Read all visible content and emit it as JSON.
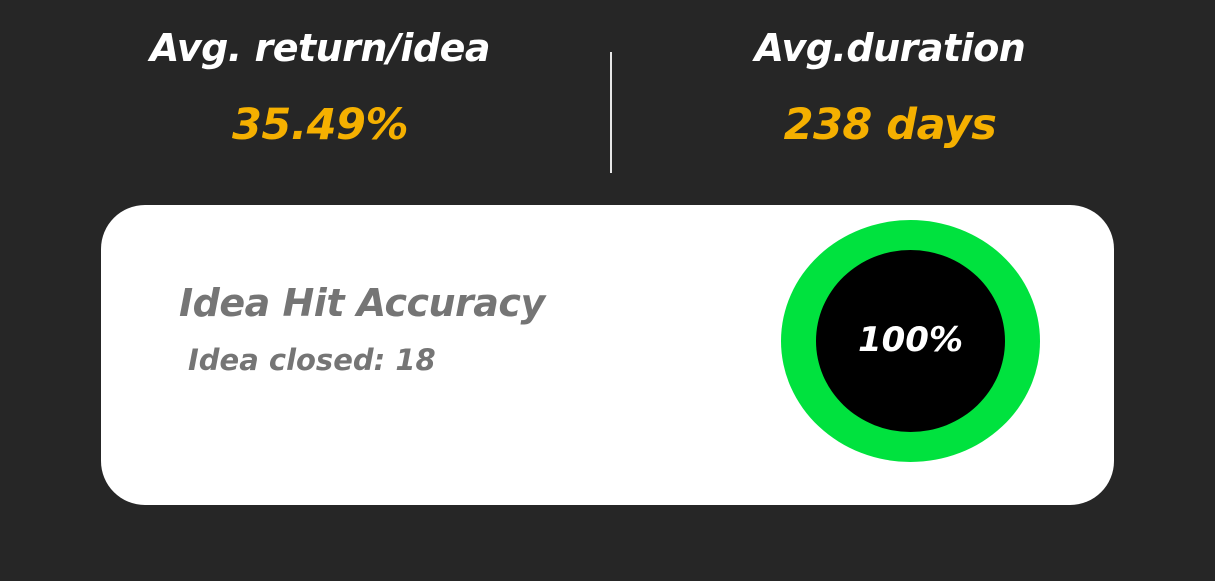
{
  "stats": {
    "avg_return": {
      "label": "Avg. return/idea",
      "value": "35.49%"
    },
    "avg_duration": {
      "label": "Avg.duration",
      "value": "238 days"
    }
  },
  "accuracy_card": {
    "title": "Idea Hit Accuracy",
    "closed_text": "Idea closed: 18",
    "percent_label": "100%",
    "hit_rate": 1.0
  },
  "colors": {
    "background": "#262626",
    "accent_value": "#f5b000",
    "label_text": "#ffffff",
    "card_background": "#ffffff",
    "card_text": "#757575",
    "ring_progress": "#00e23e",
    "ring_center": "#000000"
  }
}
